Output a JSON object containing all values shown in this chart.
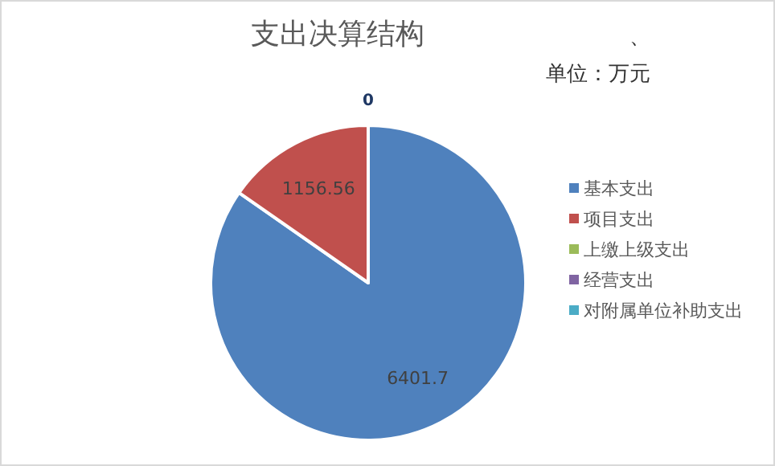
{
  "chart_data": {
    "type": "pie",
    "title": "支出决算结构",
    "annotations": [
      "、",
      "单位：万元"
    ],
    "categories": [
      "基本支出",
      "项目支出",
      "上缴上级支出",
      "经营支出",
      "对附属单位补助支出"
    ],
    "values": [
      6401.7,
      1156.56,
      0,
      0,
      0
    ],
    "colors": [
      "#4f81bd",
      "#c0504d",
      "#9bbb59",
      "#8064a2",
      "#4bacc6"
    ],
    "value_labels": [
      "6401.7",
      "1156.56",
      "0",
      null,
      null
    ],
    "legend": "right"
  }
}
